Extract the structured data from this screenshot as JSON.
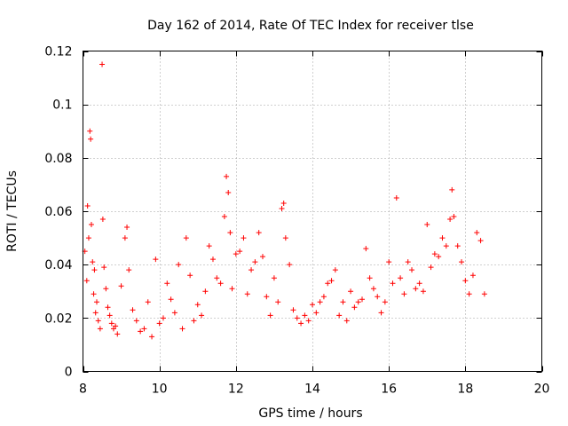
{
  "chart_data": {
    "type": "scatter",
    "title": "Day 162 of 2014, Rate Of TEC Index for receiver tlse",
    "xlabel": "GPS time / hours",
    "ylabel": "ROTI / TECUs",
    "xlim": [
      8,
      20
    ],
    "ylim": [
      0,
      0.12
    ],
    "xticks": [
      "8",
      "10",
      "12",
      "14",
      "16",
      "18",
      "20"
    ],
    "yticks": [
      "0",
      "0.02",
      "0.04",
      "0.06",
      "0.08",
      "0.1",
      "0.12"
    ],
    "grid": true,
    "marker": "plus",
    "series": [
      {
        "name": "ROTI",
        "color": "#ff0000",
        "x": [
          8.05,
          8.1,
          8.12,
          8.15,
          8.18,
          8.2,
          8.22,
          8.25,
          8.28,
          8.3,
          8.33,
          8.36,
          8.4,
          8.45,
          8.5,
          8.52,
          8.55,
          8.6,
          8.65,
          8.7,
          8.75,
          8.8,
          8.85,
          8.9,
          9.0,
          9.1,
          9.15,
          9.2,
          9.3,
          9.4,
          9.5,
          9.6,
          9.7,
          9.8,
          9.9,
          10.0,
          10.1,
          10.2,
          10.3,
          10.4,
          10.5,
          10.6,
          10.7,
          10.8,
          10.9,
          11.0,
          11.1,
          11.2,
          11.3,
          11.4,
          11.5,
          11.6,
          11.7,
          11.75,
          11.8,
          11.85,
          11.9,
          12.0,
          12.1,
          12.2,
          12.3,
          12.4,
          12.5,
          12.6,
          12.7,
          12.8,
          12.9,
          13.0,
          13.1,
          13.2,
          13.25,
          13.3,
          13.4,
          13.5,
          13.6,
          13.7,
          13.8,
          13.9,
          14.0,
          14.1,
          14.2,
          14.3,
          14.4,
          14.5,
          14.6,
          14.7,
          14.8,
          14.9,
          15.0,
          15.1,
          15.2,
          15.3,
          15.4,
          15.5,
          15.6,
          15.7,
          15.8,
          15.9,
          16.0,
          16.1,
          16.2,
          16.3,
          16.4,
          16.5,
          16.6,
          16.7,
          16.8,
          16.9,
          17.0,
          17.1,
          17.2,
          17.3,
          17.4,
          17.5,
          17.6,
          17.65,
          17.7,
          17.8,
          17.9,
          18.0,
          18.1,
          18.2,
          18.3,
          18.4,
          18.5
        ],
        "y": [
          0.045,
          0.034,
          0.062,
          0.05,
          0.09,
          0.087,
          0.055,
          0.041,
          0.029,
          0.038,
          0.022,
          0.026,
          0.019,
          0.016,
          0.115,
          0.057,
          0.039,
          0.031,
          0.024,
          0.021,
          0.018,
          0.016,
          0.017,
          0.014,
          0.032,
          0.05,
          0.054,
          0.038,
          0.023,
          0.019,
          0.015,
          0.016,
          0.026,
          0.013,
          0.042,
          0.018,
          0.02,
          0.033,
          0.027,
          0.022,
          0.04,
          0.016,
          0.05,
          0.036,
          0.019,
          0.025,
          0.021,
          0.03,
          0.047,
          0.042,
          0.035,
          0.033,
          0.058,
          0.073,
          0.067,
          0.052,
          0.031,
          0.044,
          0.045,
          0.05,
          0.029,
          0.038,
          0.041,
          0.052,
          0.043,
          0.028,
          0.021,
          0.035,
          0.026,
          0.061,
          0.063,
          0.05,
          0.04,
          0.023,
          0.02,
          0.018,
          0.021,
          0.019,
          0.025,
          0.022,
          0.026,
          0.028,
          0.033,
          0.034,
          0.038,
          0.021,
          0.026,
          0.019,
          0.03,
          0.024,
          0.026,
          0.027,
          0.046,
          0.035,
          0.031,
          0.028,
          0.022,
          0.026,
          0.041,
          0.033,
          0.065,
          0.035,
          0.029,
          0.041,
          0.038,
          0.031,
          0.033,
          0.03,
          0.055,
          0.039,
          0.044,
          0.043,
          0.05,
          0.047,
          0.057,
          0.068,
          0.058,
          0.047,
          0.041,
          0.034,
          0.029,
          0.036,
          0.052,
          0.049,
          0.029
        ]
      }
    ]
  }
}
